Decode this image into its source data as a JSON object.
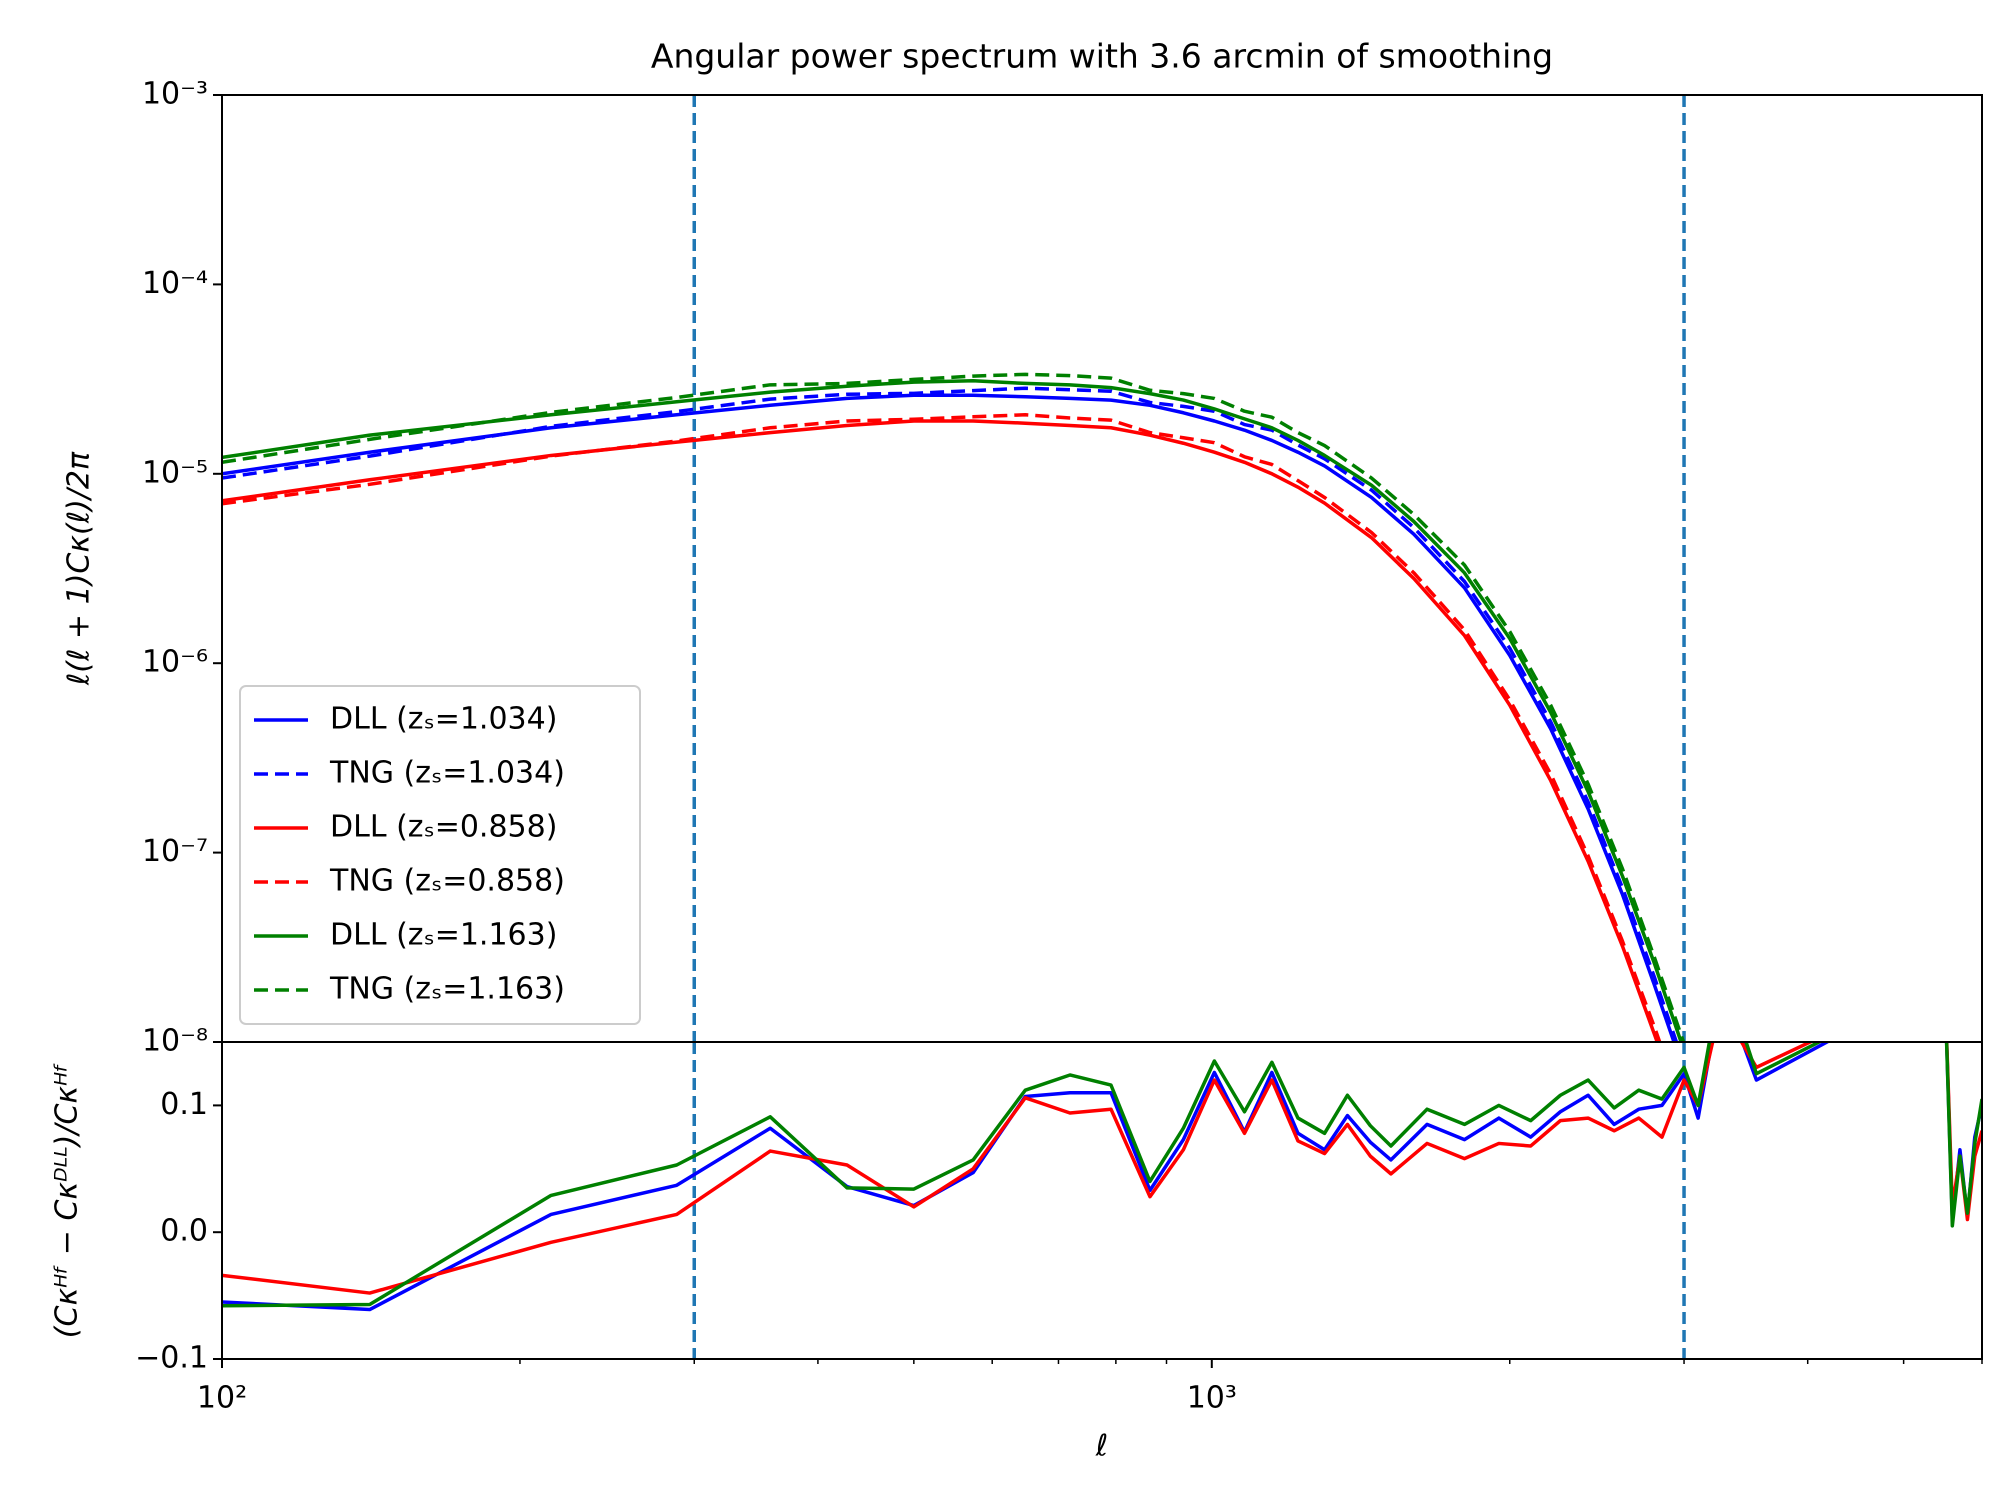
{
  "chart_data": [
    {
      "type": "line",
      "title": "Angular power spectrum with 3.6 arcmin of smoothing",
      "ylabel": "ℓ(ℓ + 1)Cκ(ℓ)/2π",
      "xscale": "log",
      "yscale": "log",
      "xlim": [
        100,
        6000
      ],
      "ylim": [
        1e-08,
        0.001
      ],
      "yticks": [
        {
          "value": 0.001,
          "label": "10⁻³"
        },
        {
          "value": 0.0001,
          "label": "10⁻⁴"
        },
        {
          "value": 1e-05,
          "label": "10⁻⁵"
        },
        {
          "value": 1e-06,
          "label": "10⁻⁶"
        },
        {
          "value": 1e-07,
          "label": "10⁻⁷"
        },
        {
          "value": 1e-08,
          "label": "10⁻⁸"
        }
      ],
      "vlines": [
        300,
        3000
      ],
      "vline_color": "#1f77b4",
      "legend": "lower left",
      "x": [
        100,
        141,
        215,
        288,
        358,
        428,
        500,
        574,
        648,
        719,
        791,
        866,
        936,
        1006,
        1079,
        1150,
        1222,
        1300,
        1450,
        1600,
        1800,
        2000,
        2200,
        2400,
        2600,
        2800,
        3000
      ],
      "series": [
        {
          "name": "DLL (zₛ=1.034)",
          "color": "#0000ff",
          "linestyle": "solid",
          "values": [
            1e-05,
            1.3e-05,
            1.75e-05,
            2.05e-05,
            2.3e-05,
            2.5e-05,
            2.6e-05,
            2.6e-05,
            2.55e-05,
            2.5e-05,
            2.45e-05,
            2.3e-05,
            2.1e-05,
            1.9e-05,
            1.7e-05,
            1.5e-05,
            1.3e-05,
            1.1e-05,
            7.5e-06,
            4.8e-06,
            2.5e-06,
            1.1e-06,
            4.5e-07,
            1.7e-07,
            6e-08,
            2e-08,
            7e-09
          ]
        },
        {
          "name": "TNG (zₛ=1.034)",
          "color": "#0000ff",
          "linestyle": "dashed",
          "values": [
            9.5e-06,
            1.24e-05,
            1.78e-05,
            2.13e-05,
            2.48e-05,
            2.63e-05,
            2.66e-05,
            2.75e-05,
            2.83e-05,
            2.78e-05,
            2.73e-05,
            2.38e-05,
            2.27e-05,
            2.14e-05,
            1.82e-05,
            1.7e-05,
            1.42e-05,
            1.2e-05,
            8.2e-06,
            5.2e-06,
            2.7e-06,
            1.2e-06,
            4.9e-07,
            1.85e-07,
            6.5e-08,
            2.2e-08,
            7.6e-09
          ]
        },
        {
          "name": "DLL (zₛ=0.858)",
          "color": "#ff0000",
          "linestyle": "solid",
          "values": [
            7.2e-06,
            9.3e-06,
            1.25e-05,
            1.47e-05,
            1.65e-05,
            1.8e-05,
            1.9e-05,
            1.9e-05,
            1.85e-05,
            1.8e-05,
            1.75e-05,
            1.6e-05,
            1.45e-05,
            1.3e-05,
            1.15e-05,
            1e-05,
            8.5e-06,
            7e-06,
            4.6e-06,
            2.8e-06,
            1.4e-06,
            6e-07,
            2.4e-07,
            9e-08,
            3.2e-08,
            1.1e-08,
            4e-09
          ]
        },
        {
          "name": "TNG (zₛ=0.858)",
          "color": "#ff0000",
          "linestyle": "dashed",
          "values": [
            6.95e-06,
            8.8e-06,
            1.24e-05,
            1.49e-05,
            1.75e-05,
            1.9e-05,
            1.94e-05,
            2e-05,
            2.05e-05,
            1.97e-05,
            1.92e-05,
            1.65e-05,
            1.55e-05,
            1.46e-05,
            1.23e-05,
            1.12e-05,
            9.2e-06,
            7.5e-06,
            4.9e-06,
            3e-06,
            1.5e-06,
            6.4e-07,
            2.6e-07,
            9.6e-08,
            3.4e-08,
            1.2e-08,
            4.3e-09
          ]
        },
        {
          "name": "DLL (zₛ=1.163)",
          "color": "#008000",
          "linestyle": "solid",
          "values": [
            1.22e-05,
            1.6e-05,
            2.05e-05,
            2.4e-05,
            2.7e-05,
            2.9e-05,
            3.05e-05,
            3.1e-05,
            3e-05,
            2.95e-05,
            2.85e-05,
            2.65e-05,
            2.45e-05,
            2.2e-05,
            1.95e-05,
            1.75e-05,
            1.5e-05,
            1.25e-05,
            8.7e-06,
            5.6e-06,
            3e-06,
            1.35e-06,
            5.5e-07,
            2.1e-07,
            7.5e-08,
            2.6e-08,
            9e-09
          ]
        },
        {
          "name": "TNG (zₛ=1.163)",
          "color": "#008000",
          "linestyle": "dashed",
          "values": [
            1.15e-05,
            1.52e-05,
            2.11e-05,
            2.53e-05,
            2.95e-05,
            3e-05,
            3.15e-05,
            3.28e-05,
            3.35e-05,
            3.3e-05,
            3.2e-05,
            2.76e-05,
            2.65e-05,
            2.5e-05,
            2.14e-05,
            1.99e-05,
            1.65e-05,
            1.41e-05,
            9.5e-06,
            6.1e-06,
            3.3e-06,
            1.47e-06,
            6e-07,
            2.3e-07,
            8.2e-08,
            2.8e-08,
            9.8e-09
          ]
        }
      ]
    },
    {
      "type": "line",
      "xlabel": "ℓ",
      "ylabel": "(Cκᴴᶠ − Cκᴰᴸᴸ)/Cκᴴᶠ",
      "xscale": "log",
      "yscale": "linear",
      "xlim": [
        100,
        6000
      ],
      "ylim": [
        -0.1,
        0.15
      ],
      "xticks": [
        {
          "value": 100,
          "label": "10²"
        },
        {
          "value": 1000,
          "label": "10³"
        }
      ],
      "xminorticks": [
        200,
        300,
        400,
        500,
        600,
        700,
        800,
        900,
        2000,
        3000,
        4000,
        5000,
        6000
      ],
      "yticks": [
        {
          "value": -0.1,
          "label": "−0.1"
        },
        {
          "value": 0,
          "label": "0.0"
        },
        0.1
      ],
      "vlines": [
        300,
        3000
      ],
      "vline_color": "#1f77b4",
      "x": [
        100,
        141,
        215,
        288,
        358,
        428,
        500,
        574,
        648,
        719,
        791,
        866,
        936,
        1006,
        1079,
        1150,
        1222,
        1300,
        1371,
        1446,
        1517,
        1650,
        1800,
        1950,
        2100,
        2250,
        2400,
        2550,
        2700,
        2850,
        3000,
        3100,
        3250,
        3400,
        3550,
        5500,
        5600,
        5700,
        5800,
        5900,
        6000
      ],
      "series": [
        {
          "color": "#0000ff",
          "linestyle": "solid",
          "values": [
            -0.055,
            -0.061,
            0.014,
            0.037,
            0.082,
            0.036,
            0.021,
            0.047,
            0.107,
            0.11,
            0.11,
            0.033,
            0.073,
            0.126,
            0.079,
            0.126,
            0.078,
            0.065,
            0.092,
            0.071,
            0.057,
            0.085,
            0.073,
            0.09,
            0.075,
            0.095,
            0.108,
            0.085,
            0.097,
            0.1,
            0.125,
            0.09,
            0.18,
            0.16,
            0.12,
            0.2,
            0.01,
            0.065,
            0.012,
            0.075,
            0.1
          ]
        },
        {
          "color": "#ff0000",
          "linestyle": "solid",
          "values": [
            -0.034,
            -0.048,
            -0.008,
            0.014,
            0.064,
            0.053,
            0.02,
            0.05,
            0.106,
            0.094,
            0.097,
            0.028,
            0.065,
            0.12,
            0.078,
            0.12,
            0.072,
            0.062,
            0.085,
            0.06,
            0.046,
            0.07,
            0.058,
            0.07,
            0.068,
            0.088,
            0.09,
            0.08,
            0.09,
            0.075,
            0.12,
            0.1,
            0.17,
            0.155,
            0.13,
            0.2,
            0.02,
            0.06,
            0.01,
            0.06,
            0.08
          ]
        },
        {
          "color": "#008000",
          "linestyle": "solid",
          "values": [
            -0.058,
            -0.057,
            0.029,
            0.053,
            0.091,
            0.035,
            0.034,
            0.057,
            0.112,
            0.124,
            0.116,
            0.04,
            0.082,
            0.135,
            0.095,
            0.134,
            0.09,
            0.078,
            0.108,
            0.084,
            0.068,
            0.097,
            0.085,
            0.1,
            0.088,
            0.108,
            0.12,
            0.098,
            0.112,
            0.105,
            0.13,
            0.1,
            0.19,
            0.17,
            0.125,
            0.2,
            0.005,
            0.06,
            0.015,
            0.07,
            0.105
          ]
        }
      ]
    }
  ]
}
